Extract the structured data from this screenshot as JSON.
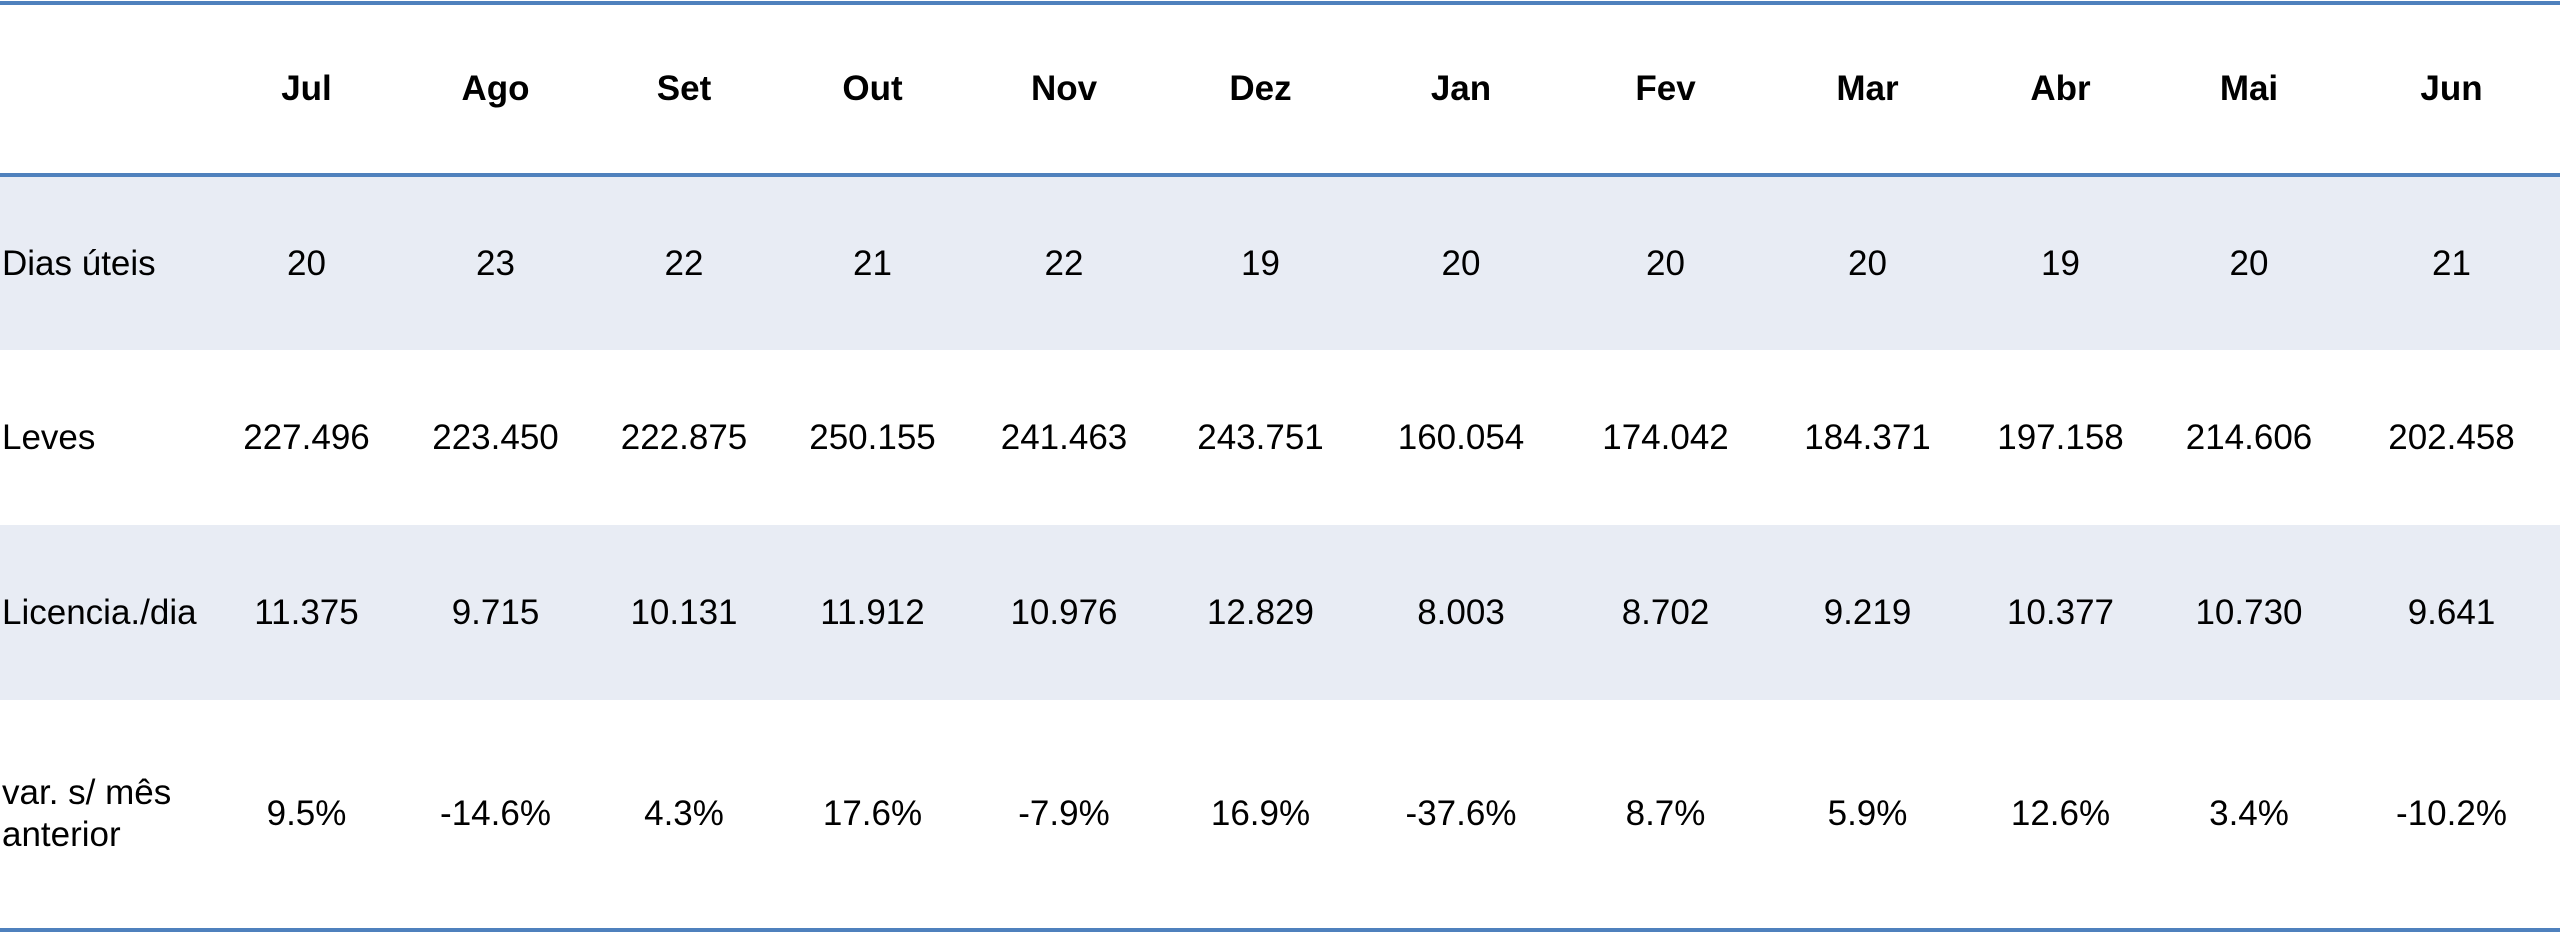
{
  "table": {
    "corner": "",
    "months": [
      "Jul",
      "Ago",
      "Set",
      "Out",
      "Nov",
      "Dez",
      "Jan",
      "Fev",
      "Mar",
      "Abr",
      "Mai",
      "Jun"
    ],
    "rows": [
      {
        "label": "Dias úteis",
        "values": [
          "20",
          "23",
          "22",
          "21",
          "22",
          "19",
          "20",
          "20",
          "20",
          "19",
          "20",
          "21"
        ]
      },
      {
        "label": "Leves",
        "values": [
          "227.496",
          "223.450",
          "222.875",
          "250.155",
          "241.463",
          "243.751",
          "160.054",
          "174.042",
          "184.371",
          "197.158",
          "214.606",
          "202.458"
        ]
      },
      {
        "label": "Licencia./dia",
        "values": [
          "11.375",
          "9.715",
          "10.131",
          "11.912",
          "10.976",
          "12.829",
          "8.003",
          "8.702",
          "9.219",
          "10.377",
          "10.730",
          "9.641"
        ]
      },
      {
        "label_line1": "var. s/ mês",
        "label_line2": "anterior",
        "values": [
          "9.5%",
          "-14.6%",
          "4.3%",
          "17.6%",
          "-7.9%",
          "16.9%",
          "-37.6%",
          "8.7%",
          "5.9%",
          "12.6%",
          "3.4%",
          "-10.2%"
        ]
      }
    ]
  },
  "colors": {
    "border": "#4F81BD",
    "band": "#E8ECF4"
  }
}
